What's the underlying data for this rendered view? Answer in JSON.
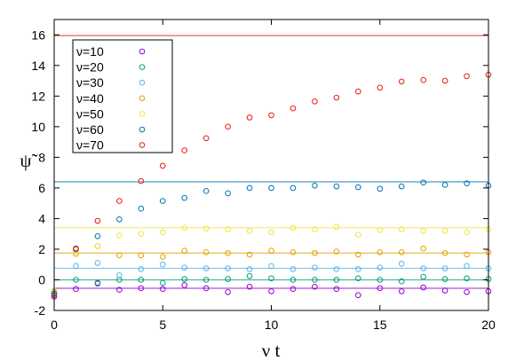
{
  "chart_data": {
    "type": "scatter",
    "title": "",
    "xlabel": "ν t",
    "ylabel": "ψ̃",
    "xlim": [
      0,
      20
    ],
    "ylim": [
      -2,
      17
    ],
    "x_ticks": [
      0,
      5,
      10,
      15,
      20
    ],
    "y_ticks": [
      -2,
      0,
      2,
      4,
      6,
      8,
      10,
      12,
      14,
      16
    ],
    "x_tick_labels": [
      "0",
      "5",
      "10",
      "15",
      "20"
    ],
    "y_tick_labels": [
      "-2",
      "0",
      "2",
      "4",
      "6",
      "8",
      "10",
      "12",
      "14",
      "16"
    ],
    "grid": false,
    "legend": "top-left",
    "x": [
      0,
      1,
      2,
      3,
      4,
      5,
      6,
      7,
      8,
      9,
      10,
      11,
      12,
      13,
      14,
      15,
      16,
      17,
      18,
      19,
      20
    ],
    "series": [
      {
        "name": "ν=10",
        "color": "#9400d3",
        "reference_line": -0.55,
        "values": [
          -1.1,
          -0.6,
          -0.2,
          -0.65,
          -0.55,
          -0.6,
          -0.35,
          -0.55,
          -0.8,
          -0.45,
          -0.75,
          -0.6,
          -0.45,
          -0.6,
          -1.0,
          -0.55,
          -0.75,
          -0.5,
          -0.7,
          -0.8,
          -0.75
        ]
      },
      {
        "name": "ν=20",
        "color": "#009e73",
        "reference_line": 0.0,
        "values": [
          -0.9,
          0.0,
          -0.25,
          0.0,
          0.0,
          -0.2,
          0.05,
          0.0,
          0.05,
          0.25,
          0.1,
          0.0,
          0.0,
          0.0,
          0.1,
          0.0,
          -0.1,
          0.2,
          0.05,
          0.1,
          0.05
        ]
      },
      {
        "name": "ν=30",
        "color": "#56b4e9",
        "reference_line": 0.75,
        "values": [
          -0.8,
          0.9,
          1.1,
          0.3,
          0.7,
          1.0,
          0.8,
          0.75,
          0.75,
          0.7,
          0.9,
          0.7,
          0.8,
          0.7,
          0.7,
          0.8,
          1.05,
          0.75,
          0.75,
          0.9,
          0.75
        ]
      },
      {
        "name": "ν=40",
        "color": "#e69f00",
        "reference_line": 1.75,
        "values": [
          -0.75,
          1.7,
          2.2,
          1.6,
          1.6,
          1.5,
          1.9,
          1.8,
          1.75,
          1.65,
          1.9,
          1.8,
          1.75,
          1.85,
          1.65,
          1.8,
          1.8,
          2.05,
          1.75,
          1.65,
          1.8
        ]
      },
      {
        "name": "ν=50",
        "color": "#f0e442",
        "reference_line": 3.4,
        "values": [
          -0.7,
          1.85,
          2.2,
          2.9,
          3.0,
          3.1,
          3.4,
          3.35,
          3.3,
          3.2,
          3.1,
          3.4,
          3.3,
          3.45,
          2.95,
          3.25,
          3.3,
          3.2,
          3.2,
          3.1,
          3.3
        ]
      },
      {
        "name": "ν=60",
        "color": "#0072b2",
        "reference_line": 6.4,
        "values": [
          -0.9,
          2.0,
          2.85,
          3.95,
          4.65,
          5.15,
          5.35,
          5.8,
          5.65,
          6.0,
          6.0,
          6.0,
          6.15,
          6.1,
          6.05,
          5.95,
          6.1,
          6.35,
          6.2,
          6.3,
          6.15
        ]
      },
      {
        "name": "ν=70",
        "color": "#e51e10",
        "reference_line": 15.95,
        "values": [
          -1.0,
          2.05,
          3.85,
          5.15,
          6.45,
          7.45,
          8.45,
          9.25,
          10.0,
          10.6,
          10.75,
          11.2,
          11.65,
          11.9,
          12.3,
          12.55,
          12.95,
          13.05,
          13.0,
          13.3,
          13.4
        ]
      }
    ]
  }
}
